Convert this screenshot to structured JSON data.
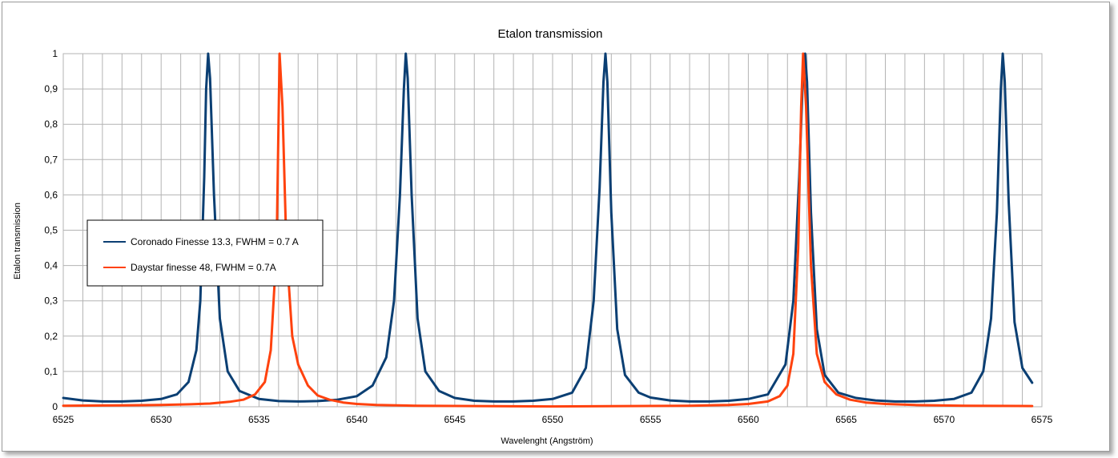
{
  "chart_data": {
    "type": "line",
    "title": "Etalon transmission",
    "xlabel": "Wavelenght (Angström)",
    "ylabel": "Etalon transmission",
    "xlim": [
      6525,
      6575
    ],
    "ylim": [
      0,
      1
    ],
    "x_ticks": [
      "6525",
      "6530",
      "6535",
      "6540",
      "6545",
      "6550",
      "6555",
      "6560",
      "6565",
      "6570",
      "6575"
    ],
    "y_ticks": [
      "0",
      "0,1",
      "0,2",
      "0,3",
      "0,4",
      "0,5",
      "0,6",
      "0,7",
      "0,8",
      "0,9",
      "1"
    ],
    "grid": true,
    "legend": "left",
    "series": [
      {
        "name": "Coronado Finesse 13.3, FWHM = 0.7 A",
        "color": "#0b3f73",
        "x": [
          6525.0,
          6526.0,
          6527.0,
          6528.0,
          6529.0,
          6530.0,
          6530.8,
          6531.4,
          6531.8,
          6532.0,
          6532.2,
          6532.3,
          6532.4,
          6532.5,
          6532.7,
          6533.0,
          6533.4,
          6534.0,
          6535.0,
          6536.0,
          6537.0,
          6538.0,
          6539.0,
          6540.0,
          6540.8,
          6541.5,
          6541.9,
          6542.2,
          6542.4,
          6542.5,
          6542.6,
          6542.8,
          6543.1,
          6543.5,
          6544.2,
          6545.0,
          6546.0,
          6547.0,
          6548.0,
          6549.0,
          6550.0,
          6551.0,
          6551.7,
          6552.1,
          6552.4,
          6552.6,
          6552.7,
          6552.8,
          6553.0,
          6553.3,
          6553.7,
          6554.4,
          6555.0,
          6556.0,
          6557.0,
          6558.0,
          6559.0,
          6560.0,
          6561.0,
          6561.9,
          6562.3,
          6562.6,
          6562.8,
          6562.9,
          6563.0,
          6563.2,
          6563.5,
          6563.9,
          6564.6,
          6565.5,
          6566.5,
          6567.5,
          6568.5,
          6569.5,
          6570.5,
          6571.4,
          6572.0,
          6572.4,
          6572.7,
          6572.9,
          6573.0,
          6573.1,
          6573.3,
          6573.6,
          6574.0,
          6574.5
        ],
        "y": [
          0.025,
          0.018,
          0.015,
          0.015,
          0.017,
          0.022,
          0.035,
          0.07,
          0.16,
          0.3,
          0.65,
          0.9,
          1.0,
          0.93,
          0.6,
          0.25,
          0.1,
          0.045,
          0.022,
          0.016,
          0.015,
          0.016,
          0.02,
          0.03,
          0.06,
          0.14,
          0.3,
          0.6,
          0.9,
          1.0,
          0.93,
          0.6,
          0.25,
          0.1,
          0.045,
          0.025,
          0.017,
          0.015,
          0.015,
          0.017,
          0.022,
          0.04,
          0.11,
          0.3,
          0.62,
          0.92,
          1.0,
          0.92,
          0.55,
          0.22,
          0.09,
          0.04,
          0.026,
          0.018,
          0.015,
          0.015,
          0.017,
          0.022,
          0.035,
          0.12,
          0.3,
          0.65,
          0.95,
          1.0,
          0.92,
          0.55,
          0.22,
          0.09,
          0.04,
          0.025,
          0.018,
          0.015,
          0.015,
          0.017,
          0.022,
          0.04,
          0.1,
          0.25,
          0.55,
          0.9,
          1.0,
          0.92,
          0.58,
          0.24,
          0.11,
          0.068
        ]
      },
      {
        "name": "Daystar finesse 48, FWHM = 0.7A",
        "color": "#ff420e",
        "x": [
          6525.0,
          6528.0,
          6530.0,
          6531.5,
          6532.5,
          6533.5,
          6534.2,
          6534.8,
          6535.3,
          6535.6,
          6535.9,
          6536.05,
          6536.2,
          6536.4,
          6536.7,
          6537.0,
          6537.5,
          6538.0,
          6538.6,
          6539.3,
          6540.0,
          6541.0,
          6543.0,
          6546.0,
          6550.0,
          6554.0,
          6557.0,
          6559.0,
          6560.0,
          6561.0,
          6561.6,
          6562.0,
          6562.3,
          6562.55,
          6562.7,
          6562.8,
          6562.95,
          6563.2,
          6563.5,
          6563.9,
          6564.5,
          6565.2,
          6566.0,
          6567.0,
          6568.5,
          6571.0,
          6574.5
        ],
        "y": [
          0.003,
          0.004,
          0.005,
          0.007,
          0.009,
          0.014,
          0.02,
          0.035,
          0.07,
          0.16,
          0.45,
          1.0,
          0.85,
          0.45,
          0.2,
          0.12,
          0.06,
          0.032,
          0.02,
          0.012,
          0.008,
          0.005,
          0.003,
          0.002,
          0.001,
          0.002,
          0.003,
          0.005,
          0.008,
          0.015,
          0.03,
          0.06,
          0.15,
          0.45,
          0.85,
          1.0,
          0.85,
          0.4,
          0.15,
          0.07,
          0.035,
          0.02,
          0.012,
          0.008,
          0.005,
          0.003,
          0.002
        ]
      }
    ]
  }
}
